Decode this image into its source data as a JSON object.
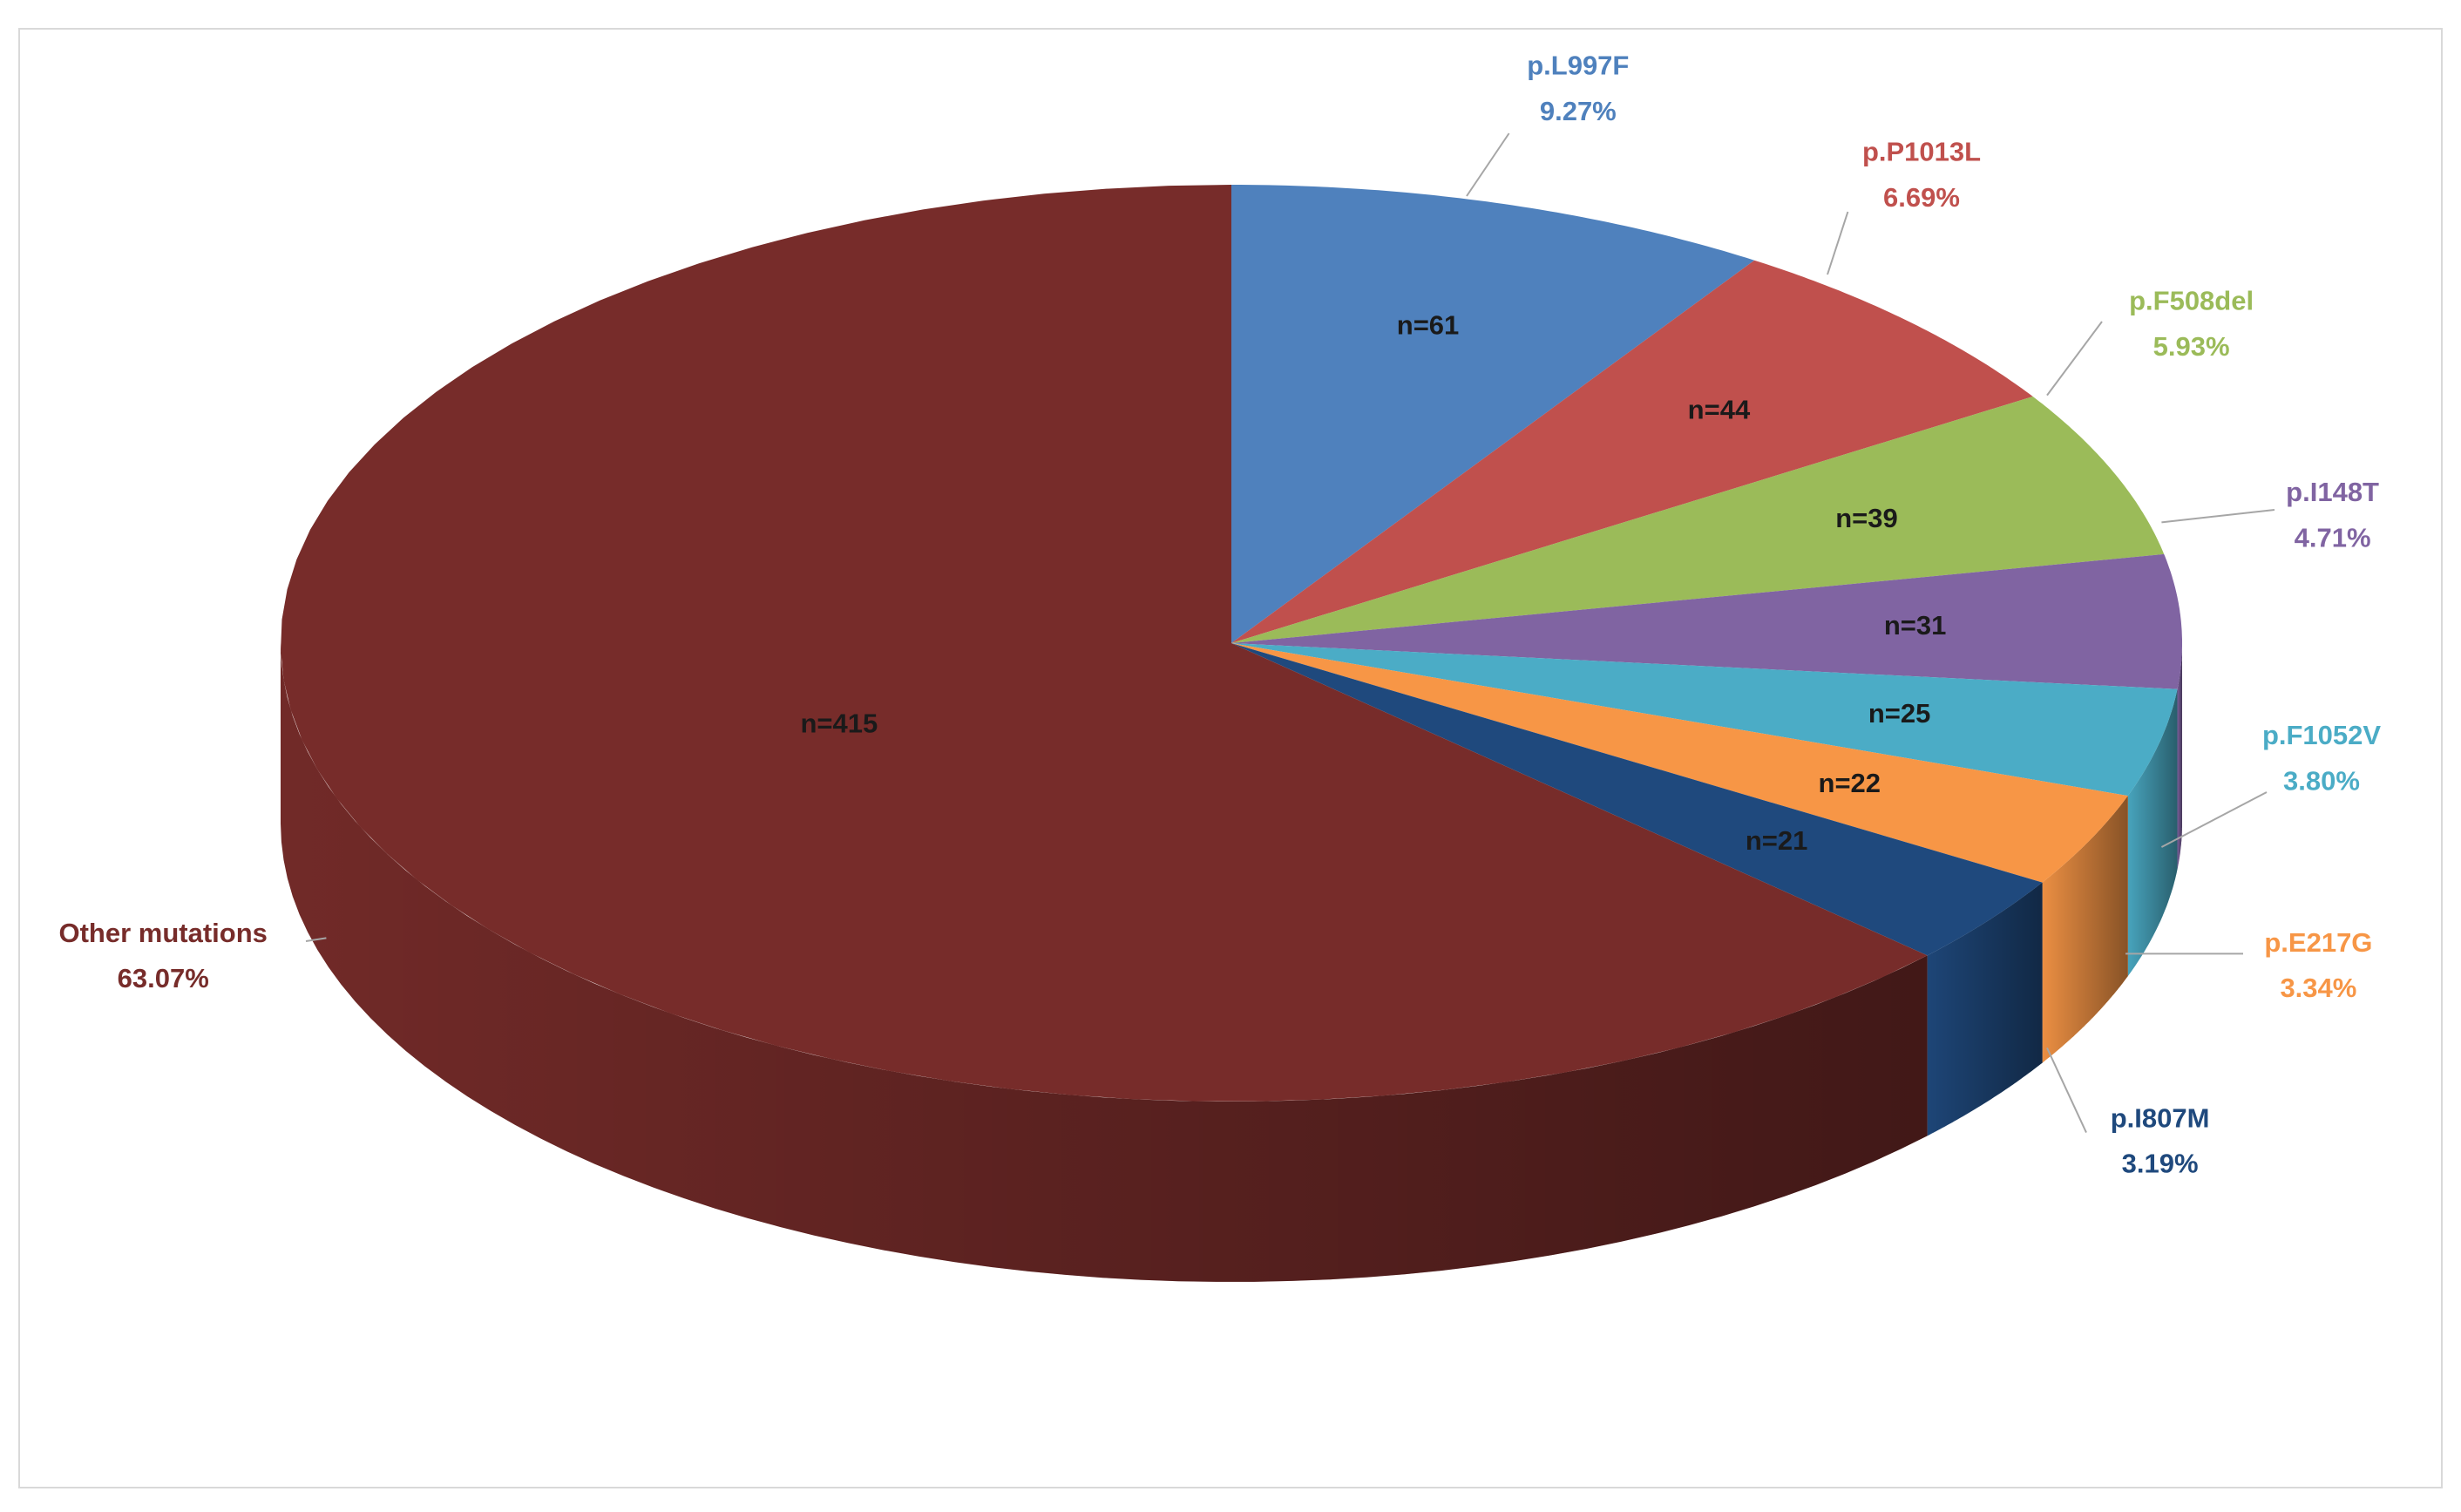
{
  "chart_data": {
    "type": "pie3d",
    "categories": [
      "p.L997F",
      "p.P1013L",
      "p.F508del",
      "p.I148T",
      "p.F1052V",
      "p.E217G",
      "p.I807M",
      "Other mutations"
    ],
    "values": [
      9.27,
      6.69,
      5.93,
      4.71,
      3.8,
      3.34,
      3.19,
      63.07
    ],
    "value_labels": [
      "9.27%",
      "6.69%",
      "5.93%",
      "4.71%",
      "3.80%",
      "3.34%",
      "3.19%",
      "63.07%"
    ],
    "count_labels": [
      "n=61",
      "n=44",
      "n=39",
      "n=31",
      "n=25",
      "n=22",
      "n=21",
      "n=415"
    ],
    "colors": [
      "#4f81bd",
      "#c0504d",
      "#9bbb59",
      "#8064a2",
      "#4bacc6",
      "#f79646",
      "#1f497d",
      "#772c2a"
    ],
    "label_colors": [
      "#4f81bd",
      "#c0504d",
      "#9bbb59",
      "#8064a2",
      "#4bacc6",
      "#f79646",
      "#1f497d",
      "#772c2a"
    ]
  }
}
